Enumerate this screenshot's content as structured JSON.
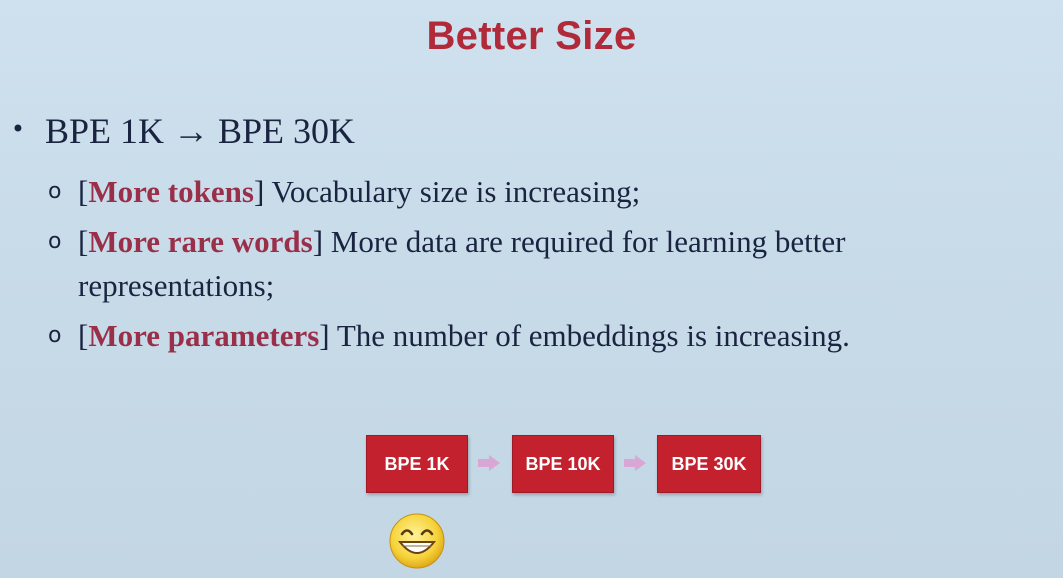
{
  "slide": {
    "title": "Better Size",
    "main_bullet": "BPE 1K → BPE 30K",
    "bullet_marker": "•",
    "sub_marker": "o",
    "sub_items": [
      {
        "term": "More tokens",
        "text": " Vocabulary size is increasing;"
      },
      {
        "term": "More rare words",
        "text": " More data are required for learning better representations;"
      },
      {
        "term": "More parameters",
        "text": "  The number of embeddings is increasing."
      }
    ],
    "flow": [
      "BPE 1K",
      "BPE 10K",
      "BPE 30K"
    ],
    "emoji_icon": "grinning-face-icon"
  },
  "colors": {
    "background": "#c8dbe9",
    "title": "#b02a3a",
    "body_text": "#1a2440",
    "term": "#9a2f4a",
    "box": "#c4212f",
    "arrow": "#d9a6d6"
  }
}
